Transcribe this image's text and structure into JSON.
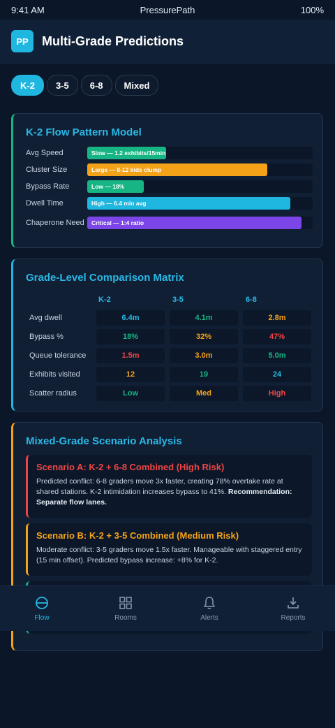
{
  "status_bar": {
    "time": "9:41 AM",
    "app": "PressurePath",
    "battery": "100%"
  },
  "header": {
    "logo": "PP",
    "title": "Multi-Grade Predictions"
  },
  "tabs": [
    {
      "label": "K-2",
      "active": true
    },
    {
      "label": "3-5",
      "active": false
    },
    {
      "label": "6-8",
      "active": false
    },
    {
      "label": "Mixed",
      "active": false
    }
  ],
  "flow_model": {
    "title": "K-2 Flow Pattern Model",
    "metrics": [
      {
        "label": "Avg Speed",
        "value_text": "Slow — 1.2 exhibits/15min",
        "fill_fraction": 0.35,
        "color": "#17b584"
      },
      {
        "label": "Cluster Size",
        "value_text": "Large — 8-12 kids clump",
        "fill_fraction": 0.8,
        "color": "#f4a319"
      },
      {
        "label": "Bypass Rate",
        "value_text": "Low — 18%",
        "fill_fraction": 0.25,
        "color": "#17b584"
      },
      {
        "label": "Dwell Time",
        "value_text": "High — 6.4 min avg",
        "fill_fraction": 0.9,
        "color": "#1fb6e0"
      },
      {
        "label": "Chaperone Need",
        "value_text": "Critical — 1:4 ratio",
        "fill_fraction": 0.95,
        "color": "#7c45e8"
      }
    ]
  },
  "comparison": {
    "title": "Grade-Level Comparison Matrix",
    "columns": [
      "K-2",
      "3-5",
      "6-8"
    ],
    "rows": [
      {
        "label": "Avg dwell",
        "cells": [
          {
            "v": "6.4m",
            "color": "#29b8e4"
          },
          {
            "v": "4.1m",
            "color": "#17b584"
          },
          {
            "v": "2.8m",
            "color": "#f4a319"
          }
        ]
      },
      {
        "label": "Bypass %",
        "cells": [
          {
            "v": "18%",
            "color": "#17b584"
          },
          {
            "v": "32%",
            "color": "#f4a319"
          },
          {
            "v": "47%",
            "color": "#ef4444"
          }
        ]
      },
      {
        "label": "Queue tolerance",
        "cells": [
          {
            "v": "1.5m",
            "color": "#ef4444"
          },
          {
            "v": "3.0m",
            "color": "#f4a319"
          },
          {
            "v": "5.0m",
            "color": "#17b584"
          }
        ]
      },
      {
        "label": "Exhibits visited",
        "cells": [
          {
            "v": "12",
            "color": "#f4a319"
          },
          {
            "v": "19",
            "color": "#17b584"
          },
          {
            "v": "24",
            "color": "#29b8e4"
          }
        ]
      },
      {
        "label": "Scatter radius",
        "cells": [
          {
            "v": "Low",
            "color": "#17b584"
          },
          {
            "v": "Med",
            "color": "#f4a319"
          },
          {
            "v": "High",
            "color": "#ef4444"
          }
        ]
      }
    ]
  },
  "scenarios": {
    "title": "Mixed-Grade Scenario Analysis",
    "items": [
      {
        "title": "Scenario A: K-2 + 6-8 Combined (High Risk)",
        "color": "#ef4444",
        "body": "Predicted conflict: 6-8 graders move 3x faster, creating 78% overtake rate at shared stations. K-2 intimidation increases bypass to 41%.",
        "recommendation": "Recommendation: Separate flow lanes."
      },
      {
        "title": "Scenario B: K-2 + 3-5 Combined (Medium Risk)",
        "color": "#f4a319",
        "body": "Moderate conflict: 3-5 graders move 1.5x faster. Manageable with staggered entry (15 min offset). Predicted bypass increase: +8% for K-2.",
        "recommendation": ""
      },
      {
        "title": "",
        "color": "#17b584",
        "body": "",
        "recommendation": ""
      }
    ]
  },
  "bottom_nav": [
    {
      "label": "Flow",
      "icon": "flow-icon",
      "active": true
    },
    {
      "label": "Rooms",
      "icon": "grid-icon",
      "active": false
    },
    {
      "label": "Alerts",
      "icon": "bell-icon",
      "active": false
    },
    {
      "label": "Reports",
      "icon": "download-icon",
      "active": false
    }
  ]
}
